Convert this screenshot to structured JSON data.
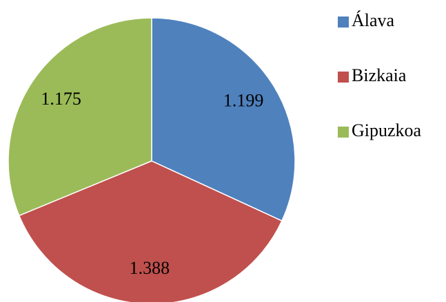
{
  "chart_data": {
    "type": "pie",
    "categories": [
      "Álava",
      "Bizkaia",
      "Gipuzkoa"
    ],
    "values": [
      1199,
      1388,
      1175
    ],
    "value_labels": [
      "1.199",
      "1.388",
      "1.175"
    ],
    "colors": [
      "#4f81bd",
      "#c0504d",
      "#9bbb59"
    ],
    "legend": "right"
  }
}
